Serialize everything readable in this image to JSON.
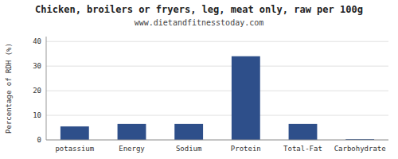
{
  "chart_data": {
    "type": "bar",
    "title": "Chicken, broilers or fryers, leg, meat only, raw per 100g",
    "subtitle": "www.dietandfitnesstoday.com",
    "categories": [
      "potassium",
      "Energy",
      "Sodium",
      "Protein",
      "Total-Fat",
      "Carbohydrate"
    ],
    "values": [
      5.5,
      6.5,
      6.5,
      34.0,
      6.5,
      0.3
    ],
    "color": "#2e4f8a",
    "ylabel": "Percentage of RDH (%)",
    "ylim": [
      0,
      42
    ],
    "yticks": [
      0,
      10,
      20,
      30,
      40
    ],
    "grid": true
  }
}
